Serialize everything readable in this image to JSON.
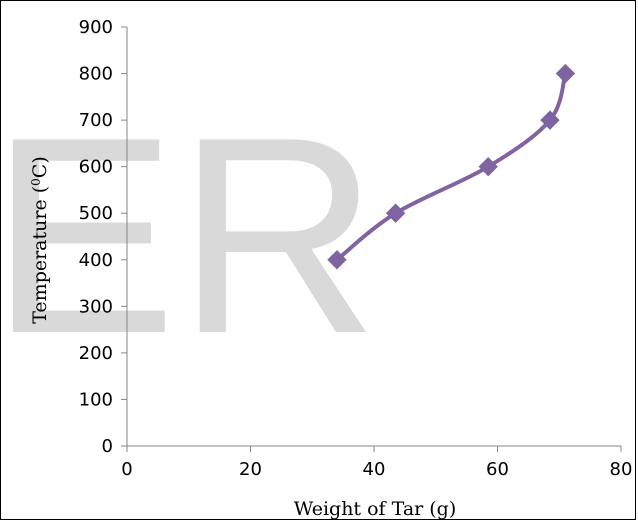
{
  "chart_data": {
    "type": "line",
    "title": "",
    "xlabel": "Weight of Tar (g)",
    "ylabel_main": "Temperature (",
    "ylabel_sup": "0",
    "ylabel_unit": "C)",
    "xlim": [
      0,
      80
    ],
    "ylim": [
      0,
      900
    ],
    "x_ticks": [
      "0",
      "20",
      "40",
      "60",
      "80"
    ],
    "y_ticks": [
      "0",
      "100",
      "200",
      "300",
      "400",
      "500",
      "600",
      "700",
      "800",
      "900"
    ],
    "grid": false,
    "legend": "none",
    "series": [
      {
        "x": [
          34,
          43.5,
          58.5,
          68.5,
          71
        ],
        "y": [
          400,
          500,
          600,
          700,
          800
        ],
        "color": "#8064a2",
        "marker": "diamond",
        "smooth": true
      }
    ]
  },
  "watermark": {
    "text": "ER",
    "color": "#d9d9d9"
  }
}
